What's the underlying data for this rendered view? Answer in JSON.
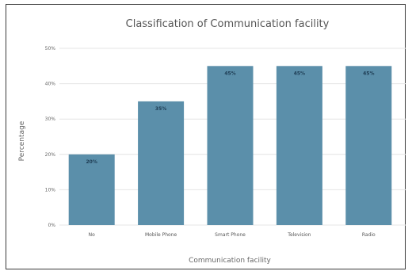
{
  "chart_data": {
    "type": "bar",
    "title": "Classification of Communication facility",
    "xlabel": "Communication facility",
    "ylabel": "Percentage",
    "categories": [
      "No",
      "Mobile Phone",
      "Smart Phone",
      "Television",
      "Radio"
    ],
    "values": [
      20,
      35,
      45,
      45,
      45
    ],
    "value_labels": [
      "20%",
      "35%",
      "45%",
      "45%",
      "45%"
    ],
    "yticks": [
      0,
      10,
      20,
      30,
      40,
      50
    ],
    "ytick_labels": [
      "0%",
      "10%",
      "20%",
      "30%",
      "40%",
      "50%"
    ],
    "ylim": [
      0,
      50
    ],
    "grid": true,
    "bar_color": "#5b8faa"
  }
}
